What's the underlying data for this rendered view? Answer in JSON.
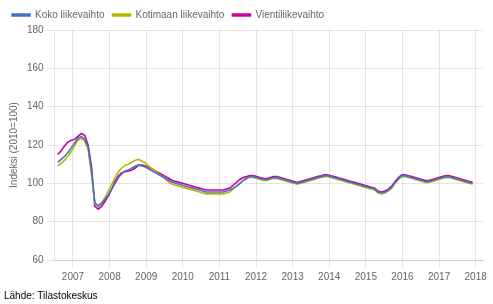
{
  "chart_data": {
    "type": "line",
    "ylabel": "Indeksi (2010=100)",
    "annotations": [
      "Lähde: Tilastokeskus"
    ],
    "xlim": [
      2006.5,
      2018.2
    ],
    "ylim": [
      60,
      180
    ],
    "xticks": [
      2007,
      2008,
      2009,
      2010,
      2011,
      2012,
      2013,
      2014,
      2015,
      2016,
      2017,
      2018
    ],
    "yticks": [
      60,
      80,
      100,
      120,
      140,
      160,
      180
    ],
    "grid": true,
    "legend": "upper left",
    "x": [
      2006.583,
      2006.6751,
      2006.7673,
      2006.8594,
      2006.9516,
      2007.0437,
      2007.1359,
      2007.228,
      2007.3202,
      2007.4123,
      2007.5045,
      2007.5966,
      2007.6888,
      2007.7809,
      2007.873,
      2007.9652,
      2008.0573,
      2008.1495,
      2008.2416,
      2008.3338,
      2008.4259,
      2008.5181,
      2008.6102,
      2008.7024,
      2008.7945,
      2008.8867,
      2008.9788,
      2009.071,
      2009.1631,
      2009.2552,
      2009.3474,
      2009.4395,
      2009.5317,
      2009.6238,
      2009.716,
      2009.8081,
      2009.9003,
      2009.9924,
      2010.0846,
      2010.1767,
      2010.2689,
      2010.361,
      2010.4531,
      2010.5453,
      2010.6374,
      2010.7296,
      2010.8217,
      2010.9139,
      2011.006,
      2011.0982,
      2011.1903,
      2011.2825,
      2011.3746,
      2011.4668,
      2011.5589,
      2011.651,
      2011.7432,
      2011.8353,
      2011.9275,
      2012.0196,
      2012.1118,
      2012.2039,
      2012.2961,
      2012.3882,
      2012.4804,
      2012.5725,
      2012.6647,
      2012.7568,
      2012.849,
      2012.9411,
      2013.0332,
      2013.1254,
      2013.2175,
      2013.3097,
      2013.4018,
      2013.494,
      2013.5861,
      2013.6783,
      2013.7704,
      2013.8626,
      2013.9547,
      2014.0469,
      2014.139,
      2014.2311,
      2014.3233,
      2014.4154,
      2014.5076,
      2014.5997,
      2014.6919,
      2014.784,
      2014.8762,
      2014.9683,
      2015.0605,
      2015.1526,
      2015.2448,
      2015.3369,
      2015.429,
      2015.5212,
      2015.6133,
      2015.7055,
      2015.7976,
      2015.8898,
      2015.9819,
      2016.0741,
      2016.1662,
      2016.2584,
      2016.3505,
      2016.4427,
      2016.5348,
      2016.627,
      2016.7191,
      2016.8112,
      2016.9034,
      2016.9955,
      2017.0877,
      2017.1798,
      2017.272,
      2017.3641,
      2017.4563,
      2017.5484,
      2017.6406,
      2017.7327,
      2017.8249,
      2017.917
    ],
    "series": [
      {
        "name": "Koko liikevaihto",
        "color": "#4472c4",
        "values": [
          111.0,
          112.5,
          114.0,
          116.0,
          118.5,
          121.0,
          123.5,
          124.5,
          123.0,
          119.0,
          107.0,
          90.0,
          88.0,
          89.5,
          91.5,
          94.0,
          97.0,
          100.0,
          103.0,
          105.0,
          106.5,
          107.0,
          108.0,
          109.0,
          109.5,
          109.0,
          108.5,
          107.5,
          106.5,
          105.5,
          104.5,
          103.5,
          102.5,
          101.5,
          100.5,
          100.0,
          99.5,
          99.0,
          98.5,
          98.0,
          97.5,
          97.0,
          96.5,
          96.0,
          95.5,
          95.5,
          95.5,
          95.5,
          95.5,
          95.5,
          96.0,
          96.5,
          97.5,
          98.5,
          100.0,
          101.5,
          102.5,
          103.5,
          103.5,
          103.0,
          102.5,
          102.0,
          102.0,
          102.5,
          103.0,
          103.0,
          102.5,
          102.0,
          101.5,
          101.0,
          100.5,
          100.0,
          100.5,
          101.0,
          101.5,
          102.0,
          102.5,
          103.0,
          103.5,
          104.0,
          104.0,
          103.5,
          103.0,
          102.5,
          102.0,
          101.5,
          101.0,
          100.5,
          100.0,
          99.5,
          99.0,
          98.5,
          98.0,
          97.5,
          97.0,
          95.5,
          95.0,
          95.5,
          96.5,
          98.0,
          100.5,
          102.5,
          104.0,
          104.0,
          103.5,
          103.0,
          102.5,
          102.0,
          101.5,
          101.0,
          101.0,
          101.5,
          102.0,
          102.5,
          103.0,
          103.5,
          103.5,
          103.0,
          102.5,
          102.0,
          101.5,
          101.0,
          100.5,
          100.0
        ]
      },
      {
        "name": "Kotimaan liikevaihto",
        "color": "#b5b800",
        "values": [
          109.0,
          110.5,
          112.0,
          114.0,
          116.5,
          119.5,
          122.5,
          123.5,
          122.0,
          118.0,
          104.5,
          89.5,
          88.5,
          90.0,
          92.5,
          96.0,
          99.5,
          103.0,
          106.0,
          108.0,
          109.5,
          110.0,
          111.0,
          112.0,
          112.5,
          111.5,
          110.5,
          109.0,
          107.5,
          106.5,
          105.0,
          103.5,
          102.0,
          100.5,
          99.5,
          99.0,
          98.5,
          98.0,
          97.5,
          97.0,
          96.5,
          96.0,
          95.5,
          95.0,
          94.5,
          94.5,
          94.5,
          94.5,
          94.5,
          94.5,
          95.0,
          95.5,
          97.0,
          98.5,
          100.0,
          101.5,
          102.5,
          103.5,
          103.0,
          102.5,
          102.0,
          101.5,
          101.5,
          102.0,
          102.5,
          102.5,
          102.0,
          101.5,
          101.0,
          100.5,
          100.0,
          99.5,
          100.0,
          100.5,
          101.0,
          101.5,
          102.0,
          102.5,
          103.0,
          103.5,
          103.5,
          103.0,
          102.5,
          102.0,
          101.5,
          101.0,
          100.5,
          100.0,
          99.5,
          99.0,
          98.5,
          98.0,
          97.5,
          97.0,
          96.5,
          95.0,
          94.5,
          95.0,
          96.0,
          97.5,
          100.0,
          102.0,
          103.5,
          103.5,
          103.0,
          102.5,
          102.0,
          101.5,
          101.0,
          100.5,
          100.5,
          101.0,
          101.5,
          102.0,
          102.5,
          103.0,
          103.0,
          102.5,
          102.0,
          101.5,
          101.0,
          100.5,
          100.0,
          99.5
        ]
      },
      {
        "name": "Vientiliikevaihto",
        "color": "#cc0099",
        "values": [
          115.0,
          117.0,
          119.5,
          121.5,
          122.5,
          123.0,
          124.5,
          126.0,
          125.0,
          120.0,
          109.0,
          88.0,
          86.5,
          88.0,
          90.5,
          93.5,
          97.0,
          101.0,
          104.0,
          105.5,
          106.0,
          106.5,
          107.0,
          108.0,
          109.5,
          109.5,
          109.0,
          108.5,
          107.5,
          106.5,
          105.5,
          104.5,
          103.5,
          102.5,
          101.5,
          101.0,
          100.5,
          100.0,
          99.5,
          99.0,
          98.5,
          98.0,
          97.5,
          97.0,
          96.5,
          96.5,
          96.5,
          96.5,
          96.5,
          96.5,
          97.0,
          97.5,
          99.0,
          100.5,
          102.0,
          103.0,
          103.5,
          104.0,
          104.0,
          103.5,
          103.0,
          102.5,
          102.5,
          103.0,
          103.5,
          103.5,
          103.0,
          102.5,
          102.0,
          101.5,
          101.0,
          100.5,
          101.0,
          101.5,
          102.0,
          102.5,
          103.0,
          103.5,
          104.0,
          104.5,
          104.5,
          104.0,
          103.5,
          103.0,
          102.5,
          102.0,
          101.5,
          101.0,
          100.5,
          100.0,
          99.5,
          99.0,
          98.5,
          98.0,
          97.5,
          96.0,
          95.5,
          96.0,
          97.0,
          98.5,
          101.0,
          103.0,
          104.5,
          104.5,
          104.0,
          103.5,
          103.0,
          102.5,
          102.0,
          101.5,
          101.5,
          102.0,
          102.5,
          103.0,
          103.5,
          104.0,
          104.0,
          103.5,
          103.0,
          102.5,
          102.0,
          101.5,
          101.0,
          100.5
        ]
      }
    ]
  }
}
